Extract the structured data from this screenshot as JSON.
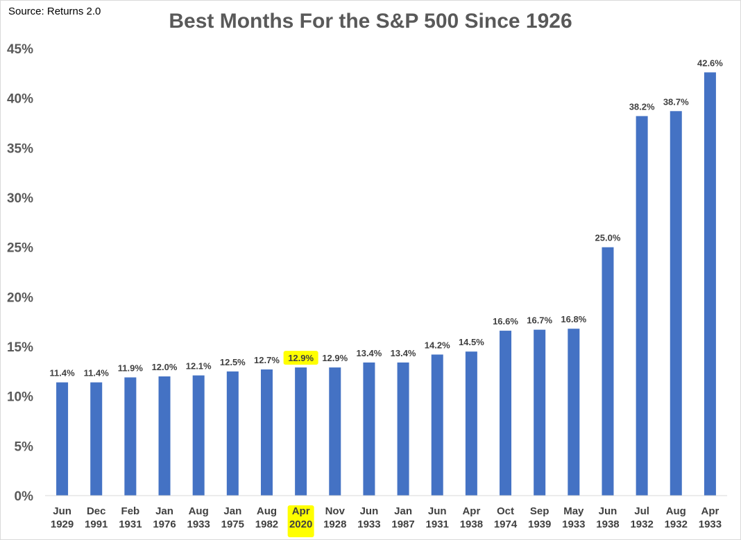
{
  "source": "Source: Returns 2.0",
  "chart_data": {
    "type": "bar",
    "title": "Best Months For the S&P 500 Since 1926",
    "xlabel": "",
    "ylabel": "",
    "ylim": [
      0,
      45
    ],
    "yticks": [
      "0%",
      "5%",
      "10%",
      "15%",
      "20%",
      "25%",
      "30%",
      "35%",
      "40%",
      "45%"
    ],
    "ytick_values": [
      0,
      5,
      10,
      15,
      20,
      25,
      30,
      35,
      40,
      45
    ],
    "grid": false,
    "bar_color": "#4472C4",
    "highlight_color": "#FFFF00",
    "highlight_index": 7,
    "categories": [
      [
        "Jun",
        "1929"
      ],
      [
        "Dec",
        "1991"
      ],
      [
        "Feb",
        "1931"
      ],
      [
        "Jan",
        "1976"
      ],
      [
        "Aug",
        "1933"
      ],
      [
        "Jan",
        "1975"
      ],
      [
        "Aug",
        "1982"
      ],
      [
        "Apr",
        "2020"
      ],
      [
        "Nov",
        "1928"
      ],
      [
        "Jun",
        "1933"
      ],
      [
        "Jan",
        "1987"
      ],
      [
        "Jun",
        "1931"
      ],
      [
        "Apr",
        "1938"
      ],
      [
        "Oct",
        "1974"
      ],
      [
        "Sep",
        "1939"
      ],
      [
        "May",
        "1933"
      ],
      [
        "Jun",
        "1938"
      ],
      [
        "Jul",
        "1932"
      ],
      [
        "Aug",
        "1932"
      ],
      [
        "Apr",
        "1933"
      ]
    ],
    "values": [
      11.4,
      11.4,
      11.9,
      12.0,
      12.1,
      12.5,
      12.7,
      12.9,
      12.9,
      13.4,
      13.4,
      14.2,
      14.5,
      16.6,
      16.7,
      16.8,
      25.0,
      38.2,
      38.7,
      42.6
    ],
    "data_labels": [
      "11.4%",
      "11.4%",
      "11.9%",
      "12.0%",
      "12.1%",
      "12.5%",
      "12.7%",
      "12.9%",
      "12.9%",
      "13.4%",
      "13.4%",
      "14.2%",
      "14.5%",
      "16.6%",
      "16.7%",
      "16.8%",
      "25.0%",
      "38.2%",
      "38.7%",
      "42.6%"
    ]
  }
}
